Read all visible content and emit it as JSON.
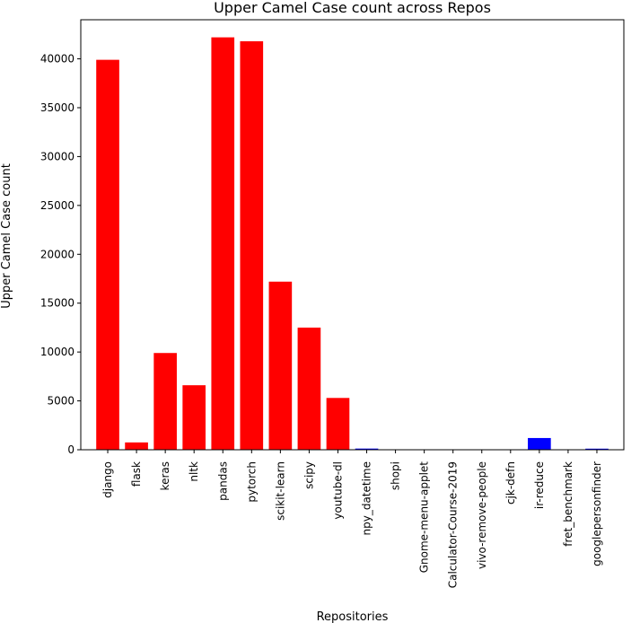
{
  "chart_data": {
    "type": "bar",
    "title": "Upper Camel Case count across Repos",
    "xlabel": "Repositories",
    "ylabel": "Upper Camel Case count",
    "ylim": [
      0,
      44000
    ],
    "yticks": [
      0,
      5000,
      10000,
      15000,
      20000,
      25000,
      30000,
      35000,
      40000
    ],
    "ytick_labels": [
      "0",
      "5000",
      "10000",
      "15000",
      "20000",
      "25000",
      "30000",
      "35000",
      "40000"
    ],
    "grid": false,
    "legend": "none",
    "categories": [
      "django",
      "flask",
      "keras",
      "nltk",
      "pandas",
      "pytorch",
      "scikit-learn",
      "scipy",
      "youtube-dl",
      "npy_datetime",
      "shopi",
      "Gnome-menu-applet",
      "Calculator-Course-2019",
      "vivo-remove-people",
      "cjk-defn",
      "ir-reduce",
      "fret_benchmark",
      "googlepersonfinder"
    ],
    "values": [
      39900,
      750,
      9900,
      6600,
      42200,
      41800,
      17200,
      12500,
      5300,
      120,
      0,
      0,
      0,
      0,
      0,
      1200,
      0,
      110
    ],
    "colors": [
      "#ff0000",
      "#ff0000",
      "#ff0000",
      "#ff0000",
      "#ff0000",
      "#ff0000",
      "#ff0000",
      "#ff0000",
      "#ff0000",
      "#0000ff",
      "#0000ff",
      "#0000ff",
      "#0000ff",
      "#0000ff",
      "#0000ff",
      "#0000ff",
      "#0000ff",
      "#0000ff"
    ]
  }
}
